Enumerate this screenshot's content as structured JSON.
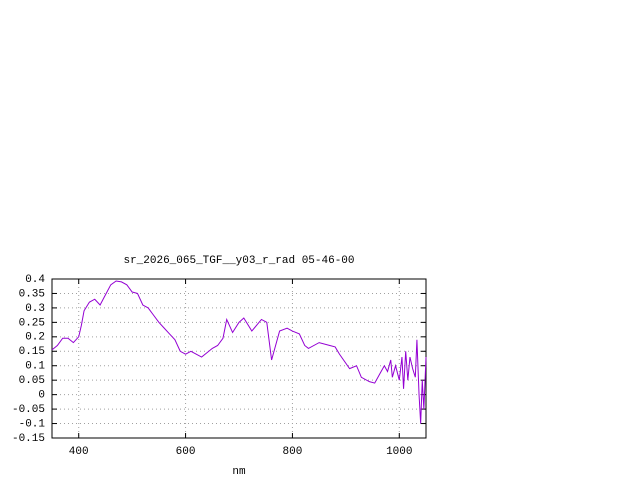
{
  "chart_data": {
    "type": "line",
    "title": "sr_2026_065_TGF__y03_r_rad 05-46-00",
    "x_label": "nm",
    "x": [
      350,
      360,
      370,
      380,
      390,
      400,
      405,
      410,
      420,
      430,
      440,
      450,
      460,
      470,
      480,
      490,
      500,
      510,
      520,
      530,
      540,
      550,
      560,
      570,
      580,
      590,
      600,
      610,
      620,
      630,
      640,
      650,
      660,
      670,
      677,
      688,
      700,
      709,
      724,
      742,
      752,
      761,
      776,
      790,
      800,
      813,
      823,
      830,
      850,
      870,
      880,
      888,
      907,
      920,
      929,
      944,
      954,
      963,
      972,
      978,
      984,
      987,
      993,
      1000,
      1005,
      1008,
      1012,
      1016,
      1020,
      1025,
      1030,
      1033,
      1037,
      1040,
      1043,
      1046,
      1050
    ],
    "series": [
      {
        "name": "sr_2026_065_TGF__y03_r_rad",
        "color": "#9400d3",
        "values": [
          0.155,
          0.17,
          0.195,
          0.195,
          0.18,
          0.2,
          0.24,
          0.29,
          0.32,
          0.33,
          0.31,
          0.345,
          0.38,
          0.393,
          0.39,
          0.38,
          0.355,
          0.35,
          0.31,
          0.3,
          0.275,
          0.25,
          0.23,
          0.21,
          0.19,
          0.15,
          0.14,
          0.15,
          0.14,
          0.13,
          0.145,
          0.16,
          0.17,
          0.195,
          0.26,
          0.215,
          0.25,
          0.265,
          0.22,
          0.26,
          0.25,
          0.12,
          0.22,
          0.23,
          0.22,
          0.21,
          0.17,
          0.16,
          0.18,
          0.17,
          0.165,
          0.14,
          0.09,
          0.1,
          0.06,
          0.045,
          0.04,
          0.07,
          0.1,
          0.08,
          0.12,
          0.06,
          0.1,
          0.05,
          0.13,
          0.02,
          0.15,
          0.05,
          0.13,
          0.09,
          0.06,
          0.19,
          0.0,
          -0.1,
          0.05,
          -0.05,
          0.13
        ]
      }
    ],
    "xlim": [
      350,
      1050
    ],
    "ylim": [
      -0.15,
      0.4
    ],
    "xticks": [
      400,
      600,
      800,
      1000
    ],
    "yticks": [
      0.4,
      0.35,
      0.3,
      0.25,
      0.2,
      0.15,
      0.1,
      0.05,
      0,
      -0.05,
      -0.1,
      -0.15
    ],
    "grid": true
  }
}
